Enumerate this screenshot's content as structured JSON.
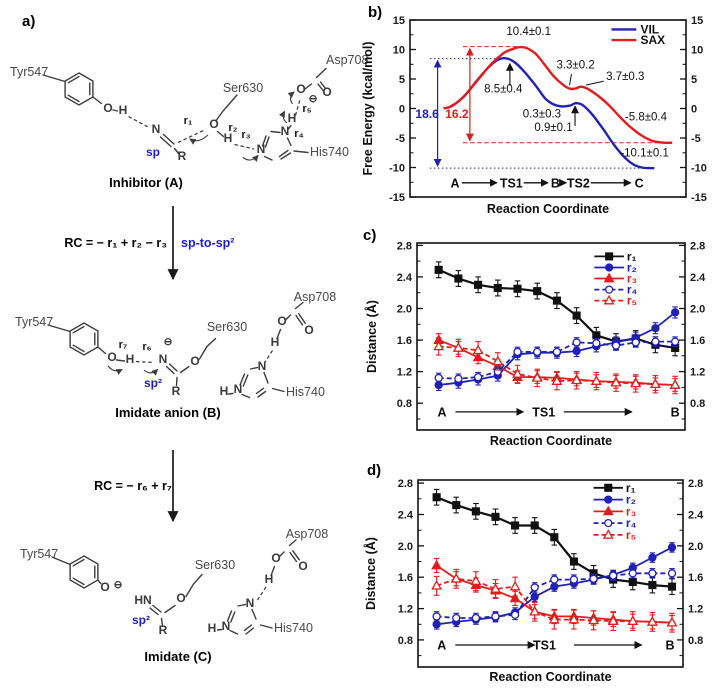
{
  "panel_a": {
    "label": "a)",
    "atoms": {
      "O": "O",
      "H": "H",
      "N": "N",
      "R": "R",
      "HN": "HN"
    },
    "charge": "⊖",
    "residues": {
      "tyr": "Tyr547",
      "ser": "Ser630",
      "asp": "Asp708",
      "his": "His740"
    },
    "bond_labels": {
      "r1": "r₁",
      "r2": "r₂",
      "r3": "r₃",
      "r4": "r₄",
      "r5": "r₅",
      "r6": "r₆",
      "r7": "r₇"
    },
    "hybridization": {
      "sp": "sp",
      "sp2": "sp²"
    },
    "captions": {
      "inhibitor": "Inhibitor (A)",
      "imidate_anion": "Imidate anion (B)",
      "imidate": "Imidate (C)"
    },
    "equations": {
      "rc1": "RC = − r₁ + r₂ − r₃",
      "note1": "sp-to-sp²",
      "rc2": "RC = − r₆ + r₇"
    }
  },
  "chart_data": [
    {
      "panel_label": "b)",
      "type": "line",
      "xlabel": "Reaction Coordinate",
      "ylabel": "Free Energy (kcal/mol)",
      "xlim": [
        0,
        10
      ],
      "ylim": [
        -15,
        15
      ],
      "yticks": [
        -15,
        -10,
        -5,
        0,
        5,
        10,
        15
      ],
      "ytick_labels": [
        "-15",
        "-10",
        "-5",
        "0",
        "5",
        "10",
        "15"
      ],
      "yticks_minor": [
        -12.5,
        -7.5,
        -2.5,
        2.5,
        7.5,
        12.5
      ],
      "legend_colored": false,
      "legend_position": "top-right",
      "series": [
        {
          "name": "VIL",
          "color": "#2121b8",
          "profile": [
            [
              1.22,
              0.0
            ],
            [
              1.5,
              0.4
            ],
            [
              1.95,
              2.0
            ],
            [
              2.4,
              4.6
            ],
            [
              2.85,
              7.0
            ],
            [
              3.2,
              8.3
            ],
            [
              3.5,
              8.5
            ],
            [
              3.8,
              7.8
            ],
            [
              4.15,
              6.2
            ],
            [
              4.55,
              3.9
            ],
            [
              4.9,
              1.7
            ],
            [
              5.2,
              0.7
            ],
            [
              5.5,
              0.35
            ],
            [
              5.8,
              0.5
            ],
            [
              6.0,
              0.9
            ],
            [
              6.25,
              0.6
            ],
            [
              6.6,
              -1.0
            ],
            [
              7.0,
              -3.5
            ],
            [
              7.4,
              -6.2
            ],
            [
              7.8,
              -8.4
            ],
            [
              8.1,
              -9.5
            ],
            [
              8.4,
              -10.0
            ],
            [
              8.7,
              -10.1
            ],
            [
              8.85,
              -10.1
            ]
          ]
        },
        {
          "name": "SAX",
          "color": "#e01d1d",
          "profile": [
            [
              1.22,
              0.0
            ],
            [
              1.55,
              0.5
            ],
            [
              2.0,
              2.3
            ],
            [
              2.45,
              4.8
            ],
            [
              2.9,
              7.3
            ],
            [
              3.4,
              9.4
            ],
            [
              3.8,
              10.2
            ],
            [
              4.0,
              10.4
            ],
            [
              4.25,
              10.2
            ],
            [
              4.55,
              9.3
            ],
            [
              4.85,
              7.6
            ],
            [
              5.2,
              5.5
            ],
            [
              5.55,
              4.0
            ],
            [
              5.8,
              3.35
            ],
            [
              6.0,
              3.4
            ],
            [
              6.2,
              3.7
            ],
            [
              6.45,
              3.3
            ],
            [
              6.8,
              2.2
            ],
            [
              7.2,
              0.6
            ],
            [
              7.6,
              -1.4
            ],
            [
              8.0,
              -3.2
            ],
            [
              8.4,
              -4.6
            ],
            [
              8.8,
              -5.5
            ],
            [
              9.2,
              -5.8
            ],
            [
              9.5,
              -5.8
            ]
          ]
        }
      ],
      "spans": [
        {
          "label": "18.6",
          "color": "#2121b8",
          "style": "dotted",
          "x": 1.0,
          "y1": 8.45,
          "y2": -10.1,
          "lx": 0.62,
          "ly": -1.6,
          "hlines": [
            {
              "y": 8.45,
              "x1": 0.72,
              "x2": 3.45
            },
            {
              "y": -10.1,
              "x1": 0.72,
              "x2": 8.6
            }
          ]
        },
        {
          "label": "16.2",
          "color": "#e01d1d",
          "style": "dashed",
          "x": 2.17,
          "y1": 10.5,
          "y2": -5.8,
          "lx": 1.7,
          "ly": -1.6,
          "hlines": [
            {
              "y": 10.5,
              "x1": 1.92,
              "x2": 4.1
            },
            {
              "y": -5.8,
              "x1": 1.92,
              "x2": 9.5
            }
          ]
        }
      ],
      "annotations": [
        {
          "text": "10.4±0.1",
          "x": 4.3,
          "y": 12.5
        },
        {
          "text": "8.5±0.4",
          "x": 3.38,
          "y": 2.7,
          "arrow": [
            3.62,
            3.9,
            3.62,
            7.6
          ]
        },
        {
          "text": "3.3±0.2",
          "x": 6.0,
          "y": 6.8,
          "leader": [
            5.85,
            5.85,
            5.78,
            3.95
          ]
        },
        {
          "text": "3.7±0.3",
          "x": 7.8,
          "y": 4.8,
          "leader": [
            7.02,
            4.62,
            6.38,
            3.98
          ]
        },
        {
          "text": "0.3±0.3",
          "x": 4.78,
          "y": -1.5
        },
        {
          "text": "0.9±0.1",
          "x": 5.2,
          "y": -3.85,
          "arrow": [
            5.98,
            -2.95,
            5.98,
            0.4
          ]
        },
        {
          "text": "-5.8±0.4",
          "x": 8.55,
          "y": -2.0
        },
        {
          "text": "-10.1±0.1",
          "x": 8.5,
          "y": -8.1
        }
      ],
      "flow": {
        "y": -12.6,
        "items": [
          {
            "t": "A",
            "x": 1.63
          },
          {
            "a": [
              1.88,
              3.15
            ]
          },
          {
            "t": "TS1",
            "x": 3.67
          },
          {
            "a": [
              4.12,
              5.0
            ]
          },
          {
            "t": "B",
            "x": 5.27
          },
          {
            "a": [
              5.5,
              5.66
            ]
          },
          {
            "t": "TS2",
            "x": 6.1
          },
          {
            "a": [
              6.55,
              8.0
            ]
          },
          {
            "t": "C",
            "x": 8.3
          }
        ]
      }
    },
    {
      "panel_label": "c)",
      "type": "line",
      "xlabel": "Reaction Coordinate",
      "ylabel": "Distance (Å)",
      "xlim": [
        -1.1,
        12.5
      ],
      "ylim": [
        0.46,
        2.83
      ],
      "yticks": [
        0.8,
        1.2,
        1.6,
        2.0,
        2.4,
        2.8
      ],
      "ytick_labels": [
        "0.8",
        "1.2",
        "1.6",
        "2.0",
        "2.4",
        "2.8"
      ],
      "yticks_minor": [
        0.6,
        1.0,
        1.4,
        1.8,
        2.2,
        2.6
      ],
      "legend_colored": true,
      "legend_position": "top-right",
      "x": [
        0,
        1,
        2,
        3,
        4,
        5,
        6,
        7,
        8,
        9,
        10,
        11,
        12
      ],
      "series": [
        {
          "name": "r₁",
          "color": "#111111",
          "marker": "square",
          "fill": "filled",
          "line": "solid",
          "err": 0.1,
          "values": [
            2.49,
            2.38,
            2.3,
            2.26,
            2.25,
            2.22,
            2.1,
            1.91,
            1.66,
            1.58,
            1.62,
            1.54,
            1.5
          ]
        },
        {
          "name": "r₂",
          "color": "#2121b8",
          "marker": "circle",
          "fill": "filled",
          "line": "solid",
          "err": 0.07,
          "values": [
            1.03,
            1.06,
            1.1,
            1.15,
            1.42,
            1.44,
            1.44,
            1.46,
            1.52,
            1.57,
            1.63,
            1.75,
            1.95
          ]
        },
        {
          "name": "r₃",
          "color": "#e01d1d",
          "marker": "triangle",
          "fill": "filled",
          "line": "solid",
          "err": 0.08,
          "values": [
            1.6,
            1.5,
            1.38,
            1.27,
            1.13,
            1.13,
            1.12,
            1.1,
            1.08,
            1.07,
            1.06,
            1.04,
            1.03
          ]
        },
        {
          "name": "r₄",
          "color": "#2121b8",
          "marker": "circle",
          "fill": "open",
          "line": "dashed",
          "err": 0.06,
          "values": [
            1.12,
            1.11,
            1.13,
            1.2,
            1.45,
            1.45,
            1.45,
            1.57,
            1.56,
            1.53,
            1.57,
            1.58,
            1.58
          ]
        },
        {
          "name": "r₅",
          "color": "#e01d1d",
          "marker": "triangle",
          "fill": "open",
          "line": "dashed",
          "err": 0.11,
          "values": [
            1.52,
            1.5,
            1.47,
            1.33,
            1.17,
            1.12,
            1.08,
            1.09,
            1.08,
            1.06,
            1.05,
            1.04,
            1.03
          ]
        }
      ],
      "flow": {
        "y": 0.69,
        "items": [
          {
            "t": "A",
            "x": 0.17
          },
          {
            "a": [
              0.85,
              4.3
            ]
          },
          {
            "t": "TS1",
            "x": 5.33
          },
          {
            "a": [
              6.35,
              9.8
            ]
          },
          {
            "t": "B",
            "x": 12.0
          }
        ]
      }
    },
    {
      "panel_label": "d)",
      "type": "line",
      "xlabel": "Reaction Coordinate",
      "ylabel": "Distance (Å)",
      "xlim": [
        -0.95,
        12.56
      ],
      "ylim": [
        0.455,
        2.84
      ],
      "yticks": [
        0.8,
        1.2,
        1.6,
        2.0,
        2.4,
        2.8
      ],
      "ytick_labels": [
        "0.8",
        "1.2",
        "1.6",
        "2.0",
        "2.4",
        "2.8"
      ],
      "yticks_minor": [
        0.6,
        1.0,
        1.4,
        1.8,
        2.2,
        2.6
      ],
      "legend_colored": true,
      "legend_position": "top-right",
      "x": [
        0,
        1,
        2,
        3,
        4,
        5,
        6,
        7,
        8,
        9,
        10,
        11,
        12
      ],
      "series": [
        {
          "name": "r₁",
          "color": "#111111",
          "marker": "square",
          "fill": "filled",
          "line": "solid",
          "err": 0.1,
          "values": [
            2.62,
            2.52,
            2.44,
            2.37,
            2.26,
            2.26,
            2.11,
            1.8,
            1.65,
            1.57,
            1.54,
            1.5,
            1.48
          ]
        },
        {
          "name": "r₂",
          "color": "#2121b8",
          "marker": "circle",
          "fill": "filled",
          "line": "solid",
          "err": 0.06,
          "values": [
            1.0,
            1.03,
            1.06,
            1.09,
            1.15,
            1.35,
            1.48,
            1.52,
            1.57,
            1.63,
            1.72,
            1.85,
            1.98
          ]
        },
        {
          "name": "r₃",
          "color": "#e01d1d",
          "marker": "triangle",
          "fill": "filled",
          "line": "solid",
          "err": 0.09,
          "values": [
            1.75,
            1.58,
            1.5,
            1.43,
            1.33,
            1.16,
            1.1,
            1.1,
            1.08,
            1.06,
            1.04,
            1.03,
            1.02
          ]
        },
        {
          "name": "r₄",
          "color": "#2121b8",
          "marker": "circle",
          "fill": "open",
          "line": "dashed",
          "err": 0.06,
          "values": [
            1.1,
            1.08,
            1.08,
            1.1,
            1.12,
            1.47,
            1.57,
            1.57,
            1.58,
            1.62,
            1.65,
            1.65,
            1.65
          ]
        },
        {
          "name": "r₅",
          "color": "#e01d1d",
          "marker": "triangle",
          "fill": "open",
          "line": "dashed",
          "err": 0.12,
          "values": [
            1.49,
            1.58,
            1.55,
            1.45,
            1.48,
            1.16,
            1.06,
            1.06,
            1.05,
            1.04,
            1.04,
            1.03,
            1.02
          ]
        }
      ],
      "flow": {
        "y": 0.735,
        "items": [
          {
            "t": "A",
            "x": 0.26
          },
          {
            "a": [
              0.95,
              5.0
            ]
          },
          {
            "t": "TS1",
            "x": 5.5
          },
          {
            "a": [
              7.0,
              10.45
            ]
          },
          {
            "t": "B",
            "x": 11.9
          }
        ]
      }
    }
  ]
}
